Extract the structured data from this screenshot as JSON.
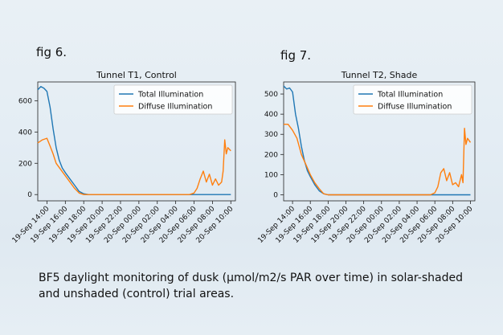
{
  "figures": [
    {
      "label": "fig 6."
    },
    {
      "label": "fig 7."
    }
  ],
  "caption": {
    "line1": "BF5 daylight monitoring of dusk (µmol/m2/s PAR over time) in solar-shaded",
    "line2": "and unshaded (control) trial areas."
  },
  "colors": {
    "total": "#1f77b4",
    "diffuse": "#ff7f0e"
  },
  "chart_data": [
    {
      "type": "line",
      "title": "Tunnel T1, Control",
      "xlabel": "",
      "ylabel": "",
      "x_ticks": [
        "19-Sep 14:00",
        "19-Sep 16:00",
        "19-Sep 18:00",
        "19-Sep 20:00",
        "19-Sep 22:00",
        "20-Sep 00:00",
        "20-Sep 02:00",
        "20-Sep 04:00",
        "20-Sep 06:00",
        "20-Sep 08:00",
        "20-Sep 10:00"
      ],
      "xlim": [
        "19-Sep 13:00",
        "20-Sep 10:30"
      ],
      "y_ticks": [
        0,
        200,
        400,
        600
      ],
      "ylim": [
        -40,
        720
      ],
      "legend": "top-right",
      "grid": false,
      "series": [
        {
          "name": "Total Illumination",
          "color": "#1f77b4",
          "x": [
            "19-Sep 13:00",
            "19-Sep 13:20",
            "19-Sep 13:40",
            "19-Sep 14:00",
            "19-Sep 14:20",
            "19-Sep 14:40",
            "19-Sep 15:00",
            "19-Sep 15:20",
            "19-Sep 15:40",
            "19-Sep 16:00",
            "19-Sep 16:30",
            "19-Sep 17:00",
            "19-Sep 17:30",
            "19-Sep 18:00",
            "19-Sep 18:30",
            "20-Sep 06:00",
            "20-Sep 07:00",
            "20-Sep 08:00",
            "20-Sep 09:00",
            "20-Sep 10:00"
          ],
          "y": [
            670,
            690,
            680,
            660,
            560,
            420,
            300,
            220,
            170,
            140,
            100,
            60,
            20,
            5,
            0,
            0,
            0,
            0,
            0,
            0
          ]
        },
        {
          "name": "Diffuse Illumination",
          "color": "#ff7f0e",
          "x": [
            "19-Sep 13:00",
            "19-Sep 13:30",
            "19-Sep 14:00",
            "19-Sep 14:20",
            "19-Sep 14:40",
            "19-Sep 15:00",
            "19-Sep 15:30",
            "19-Sep 16:00",
            "19-Sep 16:30",
            "19-Sep 17:00",
            "19-Sep 17:30",
            "19-Sep 18:00",
            "19-Sep 18:30",
            "19-Sep 20:00",
            "20-Sep 00:00",
            "20-Sep 04:00",
            "20-Sep 05:30",
            "20-Sep 06:00",
            "20-Sep 06:20",
            "20-Sep 06:40",
            "20-Sep 07:00",
            "20-Sep 07:20",
            "20-Sep 07:40",
            "20-Sep 08:00",
            "20-Sep 08:20",
            "20-Sep 08:40",
            "20-Sep 09:00",
            "20-Sep 09:10",
            "20-Sep 09:20",
            "20-Sep 09:30",
            "20-Sep 09:40",
            "20-Sep 10:00"
          ],
          "y": [
            330,
            350,
            360,
            310,
            260,
            200,
            160,
            120,
            80,
            40,
            10,
            0,
            0,
            0,
            0,
            0,
            0,
            10,
            40,
            100,
            150,
            80,
            130,
            60,
            100,
            60,
            80,
            150,
            350,
            260,
            300,
            280
          ]
        }
      ]
    },
    {
      "type": "line",
      "title": "Tunnel T2, Shade",
      "xlabel": "",
      "ylabel": "",
      "x_ticks": [
        "19-Sep 14:00",
        "19-Sep 16:00",
        "19-Sep 18:00",
        "19-Sep 20:00",
        "19-Sep 22:00",
        "20-Sep 00:00",
        "20-Sep 02:00",
        "20-Sep 04:00",
        "20-Sep 06:00",
        "20-Sep 08:00",
        "20-Sep 10:00"
      ],
      "xlim": [
        "19-Sep 13:00",
        "20-Sep 10:30"
      ],
      "y_ticks": [
        0,
        100,
        200,
        300,
        400,
        500
      ],
      "ylim": [
        -30,
        560
      ],
      "legend": "top-right",
      "grid": false,
      "series": [
        {
          "name": "Total Illumination",
          "color": "#1f77b4",
          "x": [
            "19-Sep 13:00",
            "19-Sep 13:20",
            "19-Sep 13:40",
            "19-Sep 14:00",
            "19-Sep 14:20",
            "19-Sep 14:40",
            "19-Sep 15:00",
            "19-Sep 15:20",
            "19-Sep 15:40",
            "19-Sep 16:00",
            "19-Sep 16:30",
            "19-Sep 17:00",
            "19-Sep 17:30",
            "19-Sep 18:00",
            "19-Sep 18:30",
            "20-Sep 06:00",
            "20-Sep 10:00"
          ],
          "y": [
            540,
            525,
            530,
            510,
            400,
            330,
            240,
            170,
            120,
            90,
            50,
            20,
            5,
            0,
            0,
            0,
            0
          ]
        },
        {
          "name": "Diffuse Illumination",
          "color": "#ff7f0e",
          "x": [
            "19-Sep 13:00",
            "19-Sep 13:30",
            "19-Sep 14:00",
            "19-Sep 14:30",
            "19-Sep 15:00",
            "19-Sep 15:30",
            "19-Sep 16:00",
            "19-Sep 16:30",
            "19-Sep 17:00",
            "19-Sep 17:30",
            "19-Sep 18:00",
            "19-Sep 18:30",
            "19-Sep 20:00",
            "20-Sep 00:00",
            "20-Sep 04:00",
            "20-Sep 05:30",
            "20-Sep 06:00",
            "20-Sep 06:20",
            "20-Sep 06:40",
            "20-Sep 07:00",
            "20-Sep 07:20",
            "20-Sep 07:40",
            "20-Sep 08:00",
            "20-Sep 08:20",
            "20-Sep 08:40",
            "20-Sep 09:00",
            "20-Sep 09:10",
            "20-Sep 09:20",
            "20-Sep 09:30",
            "20-Sep 09:40",
            "20-Sep 10:00"
          ],
          "y": [
            350,
            350,
            320,
            280,
            200,
            150,
            100,
            60,
            30,
            5,
            0,
            0,
            0,
            0,
            0,
            0,
            10,
            40,
            110,
            130,
            70,
            110,
            50,
            60,
            40,
            100,
            60,
            330,
            250,
            280,
            260
          ]
        }
      ]
    }
  ]
}
